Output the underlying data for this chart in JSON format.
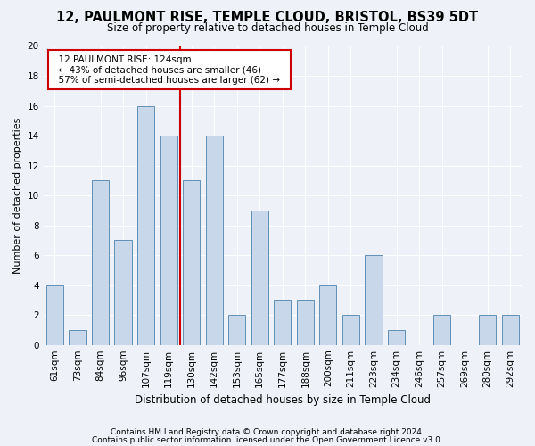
{
  "title": "12, PAULMONT RISE, TEMPLE CLOUD, BRISTOL, BS39 5DT",
  "subtitle": "Size of property relative to detached houses in Temple Cloud",
  "xlabel": "Distribution of detached houses by size in Temple Cloud",
  "ylabel": "Number of detached properties",
  "footer_line1": "Contains HM Land Registry data © Crown copyright and database right 2024.",
  "footer_line2": "Contains public sector information licensed under the Open Government Licence v3.0.",
  "bar_labels": [
    "61sqm",
    "73sqm",
    "84sqm",
    "96sqm",
    "107sqm",
    "119sqm",
    "130sqm",
    "142sqm",
    "153sqm",
    "165sqm",
    "177sqm",
    "188sqm",
    "200sqm",
    "211sqm",
    "223sqm",
    "234sqm",
    "246sqm",
    "257sqm",
    "269sqm",
    "280sqm",
    "292sqm"
  ],
  "bar_values": [
    4,
    1,
    11,
    7,
    16,
    14,
    11,
    14,
    2,
    9,
    3,
    3,
    4,
    2,
    6,
    1,
    0,
    2,
    0,
    2,
    2
  ],
  "bar_color": "#c8d8ea",
  "bar_edge_color": "#6090b8",
  "property_label": "12 PAULMONT RISE: 124sqm",
  "annotation_line1": "← 43% of detached houses are smaller (46)",
  "annotation_line2": "57% of semi-detached houses are larger (62) →",
  "annotation_box_color": "#ffffff",
  "annotation_box_edge_color": "#cc0000",
  "vline_color": "#cc0000",
  "vline_x_index": 5.5,
  "ylim": [
    0,
    20
  ],
  "yticks": [
    0,
    2,
    4,
    6,
    8,
    10,
    12,
    14,
    16,
    18,
    20
  ],
  "background_color": "#eef2f8",
  "plot_background": "#eef2f8",
  "grid_color": "#ffffff",
  "title_fontsize": 10.5,
  "subtitle_fontsize": 8.5,
  "xlabel_fontsize": 8.5,
  "ylabel_fontsize": 8,
  "tick_fontsize": 7.5,
  "footer_fontsize": 6.5,
  "bar_width": 0.75
}
